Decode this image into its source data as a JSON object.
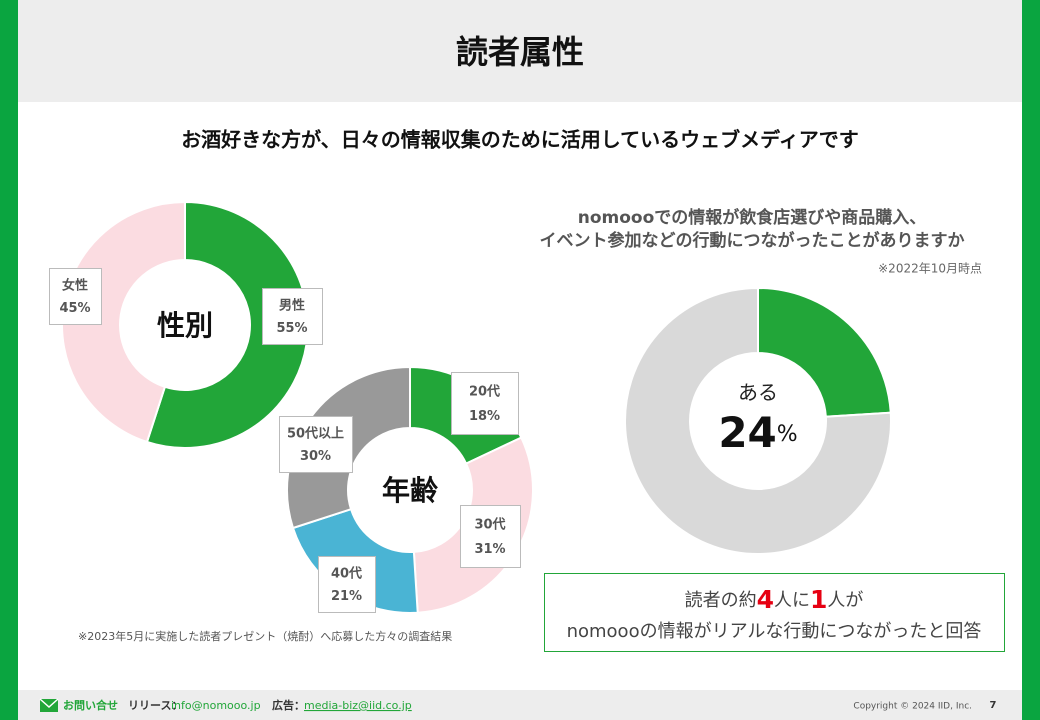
{
  "header": {
    "title": "読者属性"
  },
  "subtitle": "お酒好きな方が、日々の情報収集のために活用しているウェブメディアです",
  "chart_data": [
    {
      "type": "donut",
      "center_label": "性別",
      "categories": [
        "男性",
        "女性"
      ],
      "values": [
        55,
        45
      ],
      "value_labels": [
        "55%",
        "45%"
      ],
      "colors": [
        "#22a639",
        "#fbdce1"
      ]
    },
    {
      "type": "donut",
      "center_label": "年齢",
      "categories": [
        "20代",
        "30代",
        "40代",
        "50代以上"
      ],
      "values": [
        18,
        31,
        21,
        30
      ],
      "value_labels": [
        "18%",
        "31%",
        "21%",
        "30%"
      ],
      "colors": [
        "#22a639",
        "#fbdce1",
        "#4ab4d4",
        "#999999"
      ]
    },
    {
      "type": "donut",
      "title": [
        "nomoooでの情報が飲食店選びや商品購入、",
        "イベント参加などの行動につながったことがありますか"
      ],
      "note": "※2022年10月時点",
      "center_label": "ある",
      "categories": [
        "ある",
        null
      ],
      "values": [
        24,
        76
      ],
      "value_labels": [
        "24%",
        null
      ],
      "colors": [
        "#22a639",
        "#d9d9d9"
      ]
    }
  ],
  "note": "※2023年5月に実施した読者プレゼント（焼酎）へ応募した方々の調査結果",
  "callout": {
    "line1": [
      "読者の約",
      "4",
      "人に",
      "1",
      "人が"
    ],
    "line2": "nomoooの情報がリアルな行動につながったと回答"
  },
  "footer": {
    "contact": "お問い合せ",
    "release_label": "リリース：",
    "release_email": "info@nomooo.jp",
    "ad_label": "広告：",
    "ad_email": "media-biz@iid.co.jp",
    "copyright": "Copyright © 2024 IID, Inc.",
    "page": "7"
  }
}
